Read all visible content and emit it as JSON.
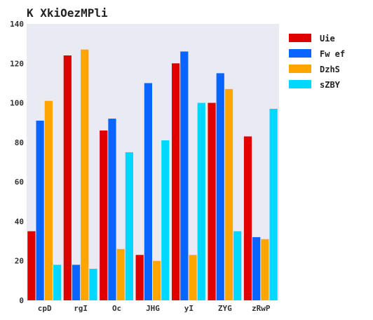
{
  "chart_data": {
    "type": "bar",
    "title": "K XkiOezMPli",
    "xlabel": "",
    "ylabel": "",
    "categories": [
      "cpD",
      "rgI",
      "Oc",
      "JHG",
      "yI",
      "ZYG",
      "zRwP"
    ],
    "ylim": [
      0,
      140
    ],
    "yticks": [
      0,
      20,
      40,
      60,
      80,
      100,
      120,
      140
    ],
    "grid": false,
    "legend_position": "top-right outside",
    "series": [
      {
        "name": "Uie",
        "color": "#e00000",
        "values": [
          35,
          124,
          86,
          23,
          120,
          100,
          83
        ]
      },
      {
        "name": "Fw ef",
        "color": "#0a64ff",
        "values": [
          91,
          18,
          92,
          110,
          126,
          115,
          32
        ]
      },
      {
        "name": "DzhS",
        "color": "#ffa500",
        "values": [
          101,
          127,
          26,
          20,
          23,
          107,
          31
        ]
      },
      {
        "name": "sZBY",
        "color": "#00d8ff",
        "values": [
          18,
          16,
          75,
          81,
          100,
          35,
          97
        ]
      }
    ],
    "plot_background": "#e9eaf2"
  }
}
